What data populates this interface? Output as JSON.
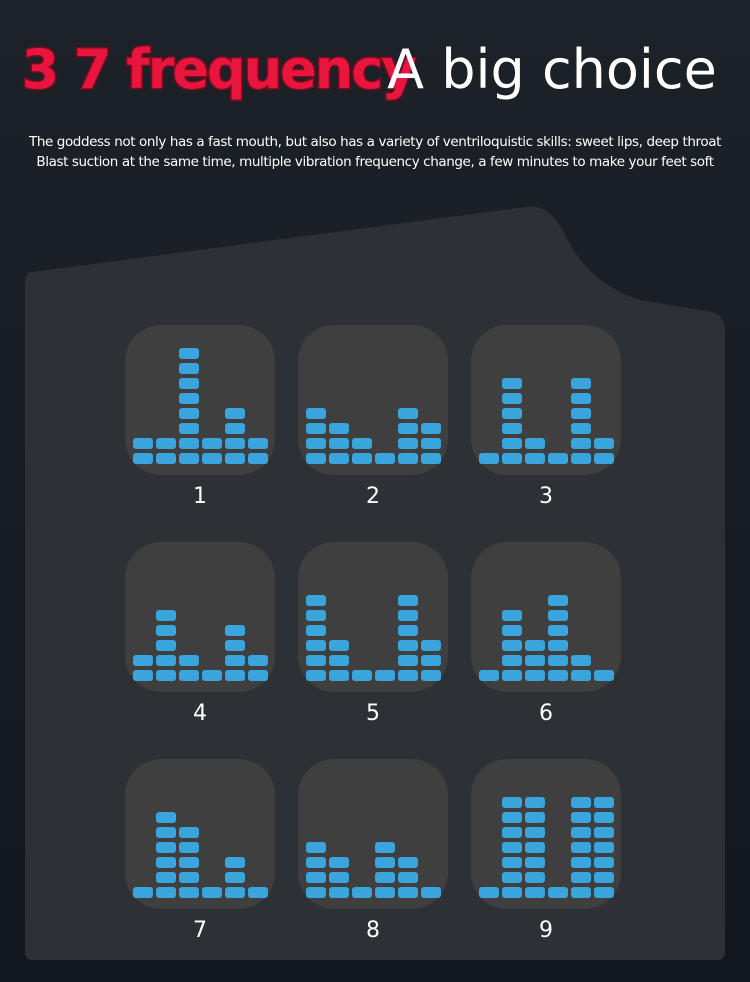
{
  "header": {
    "title_accent": "3 7 frequency",
    "title_main": "A big choice",
    "subtitle": [
      "The goddess not only has a fast mouth, but also has a variety of ventriloquistic skills: sweet lips, deep throat",
      "Blast suction at the same time, multiple vibration frequency change, a few minutes to make your feet soft"
    ]
  },
  "modes": {
    "labels": [
      "1",
      "2",
      "3",
      "4",
      "5",
      "6",
      "7",
      "8",
      "9"
    ]
  }
}
